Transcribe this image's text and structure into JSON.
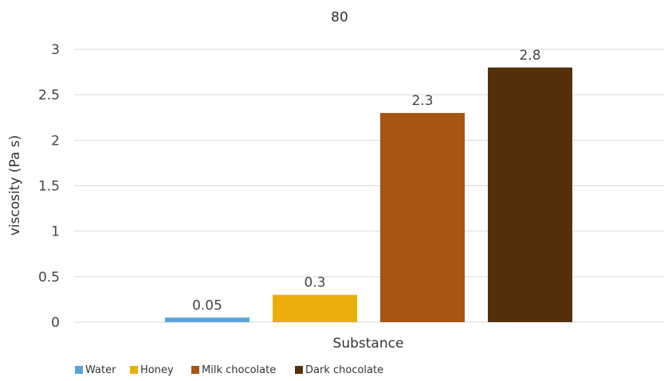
{
  "chart_data": {
    "type": "bar",
    "title": "80",
    "xlabel": "Substance",
    "ylabel": "viscosity (Pa s)",
    "ylim": [
      0,
      3
    ],
    "yticks": [
      "0",
      "0.5",
      "1",
      "1.5",
      "2",
      "2.5",
      "3"
    ],
    "grid": true,
    "legend_position": "bottom-left",
    "series": [
      {
        "name": "Water",
        "values": [
          0.05
        ],
        "label": "0.05",
        "color": "#5aa5d8"
      },
      {
        "name": "Honey",
        "values": [
          0.3
        ],
        "label": "0.3",
        "color": "#eaae0b"
      },
      {
        "name": "Milk chocolate",
        "values": [
          2.3
        ],
        "label": "2.3",
        "color": "#a65512"
      },
      {
        "name": "Dark chocolate",
        "values": [
          2.8
        ],
        "label": "2.8",
        "color": "#553009"
      }
    ]
  }
}
